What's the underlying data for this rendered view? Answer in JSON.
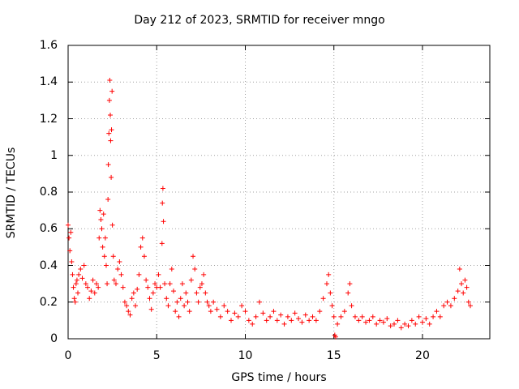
{
  "chart_data": {
    "type": "scatter",
    "title": "Day 212 of 2023, SRMTID for receiver mngo",
    "xlabel": "GPS time / hours",
    "ylabel": "SRMTID / TECUs",
    "xlim": [
      0,
      23.8
    ],
    "ylim": [
      0,
      1.6
    ],
    "x_ticks": [
      0,
      5,
      10,
      15,
      20
    ],
    "x_tick_labels": [
      "0",
      "5",
      "10",
      "15",
      "20"
    ],
    "y_ticks": [
      0,
      0.2,
      0.4,
      0.6,
      0.8,
      1.0,
      1.2,
      1.4,
      1.6
    ],
    "y_tick_labels": [
      "0",
      "0.2",
      "0.4",
      "0.6",
      "0.8",
      "1",
      "1.2",
      "1.4",
      "1.6"
    ],
    "grid": true,
    "marker": "+",
    "series": [
      {
        "name": "SRMTID",
        "color": "#ff0000",
        "points": [
          [
            0.0,
            0.62
          ],
          [
            0.05,
            0.55
          ],
          [
            0.1,
            0.48
          ],
          [
            0.15,
            0.58
          ],
          [
            0.2,
            0.42
          ],
          [
            0.25,
            0.35
          ],
          [
            0.3,
            0.28
          ],
          [
            0.35,
            0.22
          ],
          [
            0.4,
            0.2
          ],
          [
            0.45,
            0.3
          ],
          [
            0.5,
            0.32
          ],
          [
            0.55,
            0.25
          ],
          [
            0.6,
            0.35
          ],
          [
            0.7,
            0.38
          ],
          [
            0.8,
            0.33
          ],
          [
            0.9,
            0.4
          ],
          [
            1.0,
            0.3
          ],
          [
            1.1,
            0.28
          ],
          [
            1.2,
            0.22
          ],
          [
            1.3,
            0.26
          ],
          [
            1.4,
            0.32
          ],
          [
            1.5,
            0.25
          ],
          [
            1.6,
            0.3
          ],
          [
            1.7,
            0.28
          ],
          [
            1.75,
            0.55
          ],
          [
            1.8,
            0.7
          ],
          [
            1.85,
            0.65
          ],
          [
            1.9,
            0.6
          ],
          [
            1.95,
            0.5
          ],
          [
            2.0,
            0.68
          ],
          [
            2.05,
            0.45
          ],
          [
            2.1,
            0.55
          ],
          [
            2.15,
            0.4
          ],
          [
            2.2,
            0.3
          ],
          [
            2.25,
            0.76
          ],
          [
            2.27,
            0.95
          ],
          [
            2.3,
            1.12
          ],
          [
            2.33,
            1.3
          ],
          [
            2.35,
            1.41
          ],
          [
            2.38,
            1.22
          ],
          [
            2.4,
            1.08
          ],
          [
            2.43,
            0.88
          ],
          [
            2.45,
            1.14
          ],
          [
            2.48,
            1.35
          ],
          [
            2.5,
            0.62
          ],
          [
            2.55,
            0.45
          ],
          [
            2.6,
            0.32
          ],
          [
            2.7,
            0.3
          ],
          [
            2.8,
            0.38
          ],
          [
            2.9,
            0.42
          ],
          [
            3.0,
            0.35
          ],
          [
            3.1,
            0.28
          ],
          [
            3.2,
            0.2
          ],
          [
            3.3,
            0.18
          ],
          [
            3.4,
            0.15
          ],
          [
            3.5,
            0.13
          ],
          [
            3.6,
            0.22
          ],
          [
            3.7,
            0.25
          ],
          [
            3.8,
            0.18
          ],
          [
            3.9,
            0.27
          ],
          [
            4.0,
            0.35
          ],
          [
            4.1,
            0.5
          ],
          [
            4.2,
            0.55
          ],
          [
            4.3,
            0.45
          ],
          [
            4.4,
            0.32
          ],
          [
            4.5,
            0.28
          ],
          [
            4.6,
            0.22
          ],
          [
            4.7,
            0.16
          ],
          [
            4.8,
            0.25
          ],
          [
            4.9,
            0.3
          ],
          [
            5.0,
            0.28
          ],
          [
            5.1,
            0.35
          ],
          [
            5.2,
            0.28
          ],
          [
            5.3,
            0.52
          ],
          [
            5.32,
            0.74
          ],
          [
            5.35,
            0.82
          ],
          [
            5.38,
            0.64
          ],
          [
            5.45,
            0.3
          ],
          [
            5.55,
            0.22
          ],
          [
            5.65,
            0.18
          ],
          [
            5.75,
            0.3
          ],
          [
            5.85,
            0.38
          ],
          [
            5.95,
            0.26
          ],
          [
            6.05,
            0.15
          ],
          [
            6.15,
            0.2
          ],
          [
            6.25,
            0.12
          ],
          [
            6.35,
            0.22
          ],
          [
            6.45,
            0.3
          ],
          [
            6.55,
            0.18
          ],
          [
            6.65,
            0.25
          ],
          [
            6.75,
            0.2
          ],
          [
            6.85,
            0.15
          ],
          [
            6.95,
            0.32
          ],
          [
            7.05,
            0.45
          ],
          [
            7.15,
            0.38
          ],
          [
            7.25,
            0.25
          ],
          [
            7.35,
            0.2
          ],
          [
            7.45,
            0.28
          ],
          [
            7.55,
            0.3
          ],
          [
            7.65,
            0.35
          ],
          [
            7.75,
            0.25
          ],
          [
            7.85,
            0.2
          ],
          [
            7.95,
            0.18
          ],
          [
            8.05,
            0.15
          ],
          [
            8.2,
            0.2
          ],
          [
            8.4,
            0.16
          ],
          [
            8.6,
            0.12
          ],
          [
            8.8,
            0.18
          ],
          [
            9.0,
            0.15
          ],
          [
            9.2,
            0.1
          ],
          [
            9.4,
            0.14
          ],
          [
            9.6,
            0.12
          ],
          [
            9.8,
            0.18
          ],
          [
            10.0,
            0.15
          ],
          [
            10.2,
            0.1
          ],
          [
            10.4,
            0.08
          ],
          [
            10.6,
            0.12
          ],
          [
            10.8,
            0.2
          ],
          [
            11.0,
            0.14
          ],
          [
            11.2,
            0.1
          ],
          [
            11.4,
            0.12
          ],
          [
            11.6,
            0.15
          ],
          [
            11.8,
            0.1
          ],
          [
            12.0,
            0.13
          ],
          [
            12.2,
            0.08
          ],
          [
            12.4,
            0.12
          ],
          [
            12.6,
            0.1
          ],
          [
            12.8,
            0.14
          ],
          [
            13.0,
            0.11
          ],
          [
            13.2,
            0.09
          ],
          [
            13.4,
            0.13
          ],
          [
            13.6,
            0.1
          ],
          [
            13.8,
            0.12
          ],
          [
            14.0,
            0.1
          ],
          [
            14.2,
            0.15
          ],
          [
            14.4,
            0.22
          ],
          [
            14.6,
            0.3
          ],
          [
            14.7,
            0.35
          ],
          [
            14.8,
            0.25
          ],
          [
            14.9,
            0.18
          ],
          [
            15.0,
            0.12
          ],
          [
            15.05,
            0.02
          ],
          [
            15.1,
            0.01
          ],
          [
            15.2,
            0.08
          ],
          [
            15.4,
            0.12
          ],
          [
            15.6,
            0.15
          ],
          [
            15.8,
            0.25
          ],
          [
            15.9,
            0.3
          ],
          [
            16.0,
            0.18
          ],
          [
            16.2,
            0.12
          ],
          [
            16.4,
            0.1
          ],
          [
            16.6,
            0.12
          ],
          [
            16.8,
            0.09
          ],
          [
            17.0,
            0.1
          ],
          [
            17.2,
            0.12
          ],
          [
            17.4,
            0.08
          ],
          [
            17.6,
            0.1
          ],
          [
            17.8,
            0.09
          ],
          [
            18.0,
            0.11
          ],
          [
            18.2,
            0.07
          ],
          [
            18.4,
            0.08
          ],
          [
            18.6,
            0.1
          ],
          [
            18.8,
            0.06
          ],
          [
            19.0,
            0.08
          ],
          [
            19.2,
            0.07
          ],
          [
            19.4,
            0.1
          ],
          [
            19.6,
            0.08
          ],
          [
            19.8,
            0.12
          ],
          [
            20.0,
            0.09
          ],
          [
            20.2,
            0.11
          ],
          [
            20.4,
            0.08
          ],
          [
            20.6,
            0.12
          ],
          [
            20.8,
            0.15
          ],
          [
            21.0,
            0.12
          ],
          [
            21.2,
            0.18
          ],
          [
            21.4,
            0.2
          ],
          [
            21.6,
            0.18
          ],
          [
            21.8,
            0.22
          ],
          [
            22.0,
            0.26
          ],
          [
            22.1,
            0.38
          ],
          [
            22.2,
            0.3
          ],
          [
            22.3,
            0.25
          ],
          [
            22.4,
            0.32
          ],
          [
            22.5,
            0.28
          ],
          [
            22.6,
            0.2
          ],
          [
            22.7,
            0.18
          ]
        ]
      }
    ]
  }
}
